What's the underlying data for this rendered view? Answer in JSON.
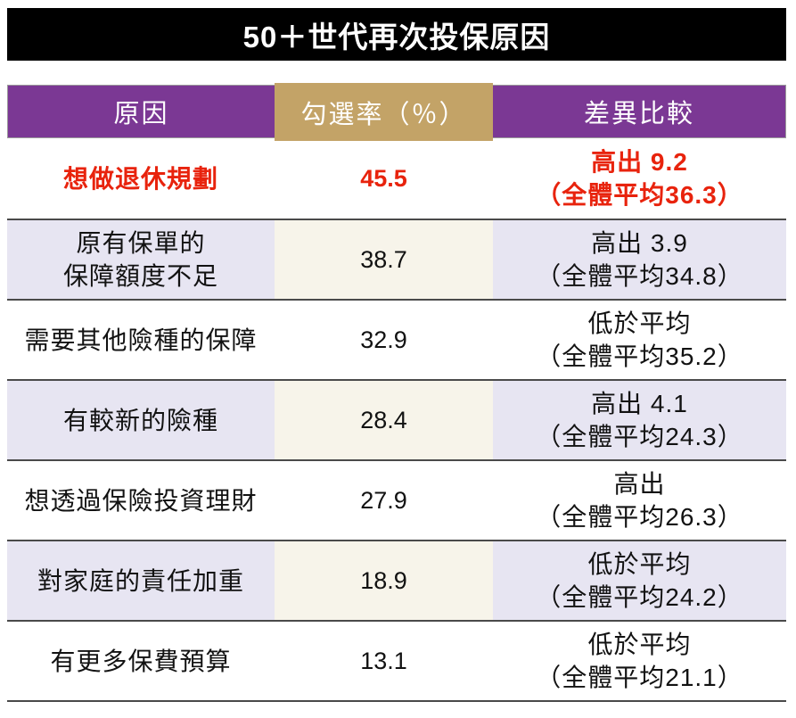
{
  "title": "50＋世代再次投保原因",
  "colors": {
    "black": "#000000",
    "purple": "#7b3894",
    "tan": "#c3a367",
    "lavender": "#e7e5f2",
    "cream": "#f7f4ea",
    "red": "#e8230d",
    "line": "#4a4a4a"
  },
  "table": {
    "headers": [
      "原因",
      "勾選率（％）",
      "差異比較"
    ],
    "rows": [
      {
        "reason": "想做退休規劃",
        "rate": "45.5",
        "diff": "高出 9.2\n（全體平均36.3）"
      },
      {
        "reason": "原有保單的\n保障額度不足",
        "rate": "38.7",
        "diff": "高出 3.9\n（全體平均34.8）"
      },
      {
        "reason": "需要其他險種的保障",
        "rate": "32.9",
        "diff": "低於平均\n（全體平均35.2）"
      },
      {
        "reason": "有較新的險種",
        "rate": "28.4",
        "diff": "高出 4.1\n（全體平均24.3）"
      },
      {
        "reason": "想透過保險投資理財",
        "rate": "27.9",
        "diff": "高出\n（全體平均26.3）"
      },
      {
        "reason": "對家庭的責任加重",
        "rate": "18.9",
        "diff": "低於平均\n（全體平均24.2）"
      },
      {
        "reason": "有更多保費預算",
        "rate": "13.1",
        "diff": "低於平均\n（全體平均21.1）"
      }
    ]
  },
  "chart_data": {
    "type": "table",
    "title": "50＋世代再次投保原因",
    "columns": [
      "原因",
      "勾選率（％）",
      "差異比較"
    ],
    "rows": [
      {
        "reason": "想做退休規劃",
        "rate": 45.5,
        "comparison": "高出 9.2",
        "overall_average": 36.3,
        "highlight": true
      },
      {
        "reason": "原有保單的保障額度不足",
        "rate": 38.7,
        "comparison": "高出 3.9",
        "overall_average": 34.8,
        "highlight": false
      },
      {
        "reason": "需要其他險種的保障",
        "rate": 32.9,
        "comparison": "低於平均",
        "overall_average": 35.2,
        "highlight": false
      },
      {
        "reason": "有較新的險種",
        "rate": 28.4,
        "comparison": "高出 4.1",
        "overall_average": 24.3,
        "highlight": false
      },
      {
        "reason": "想透過保險投資理財",
        "rate": 27.9,
        "comparison": "高出",
        "overall_average": 26.3,
        "highlight": false
      },
      {
        "reason": "對家庭的責任加重",
        "rate": 18.9,
        "comparison": "低於平均",
        "overall_average": 24.2,
        "highlight": false
      },
      {
        "reason": "有更多保費預算",
        "rate": 13.1,
        "comparison": "低於平均",
        "overall_average": 21.1,
        "highlight": false
      }
    ]
  }
}
